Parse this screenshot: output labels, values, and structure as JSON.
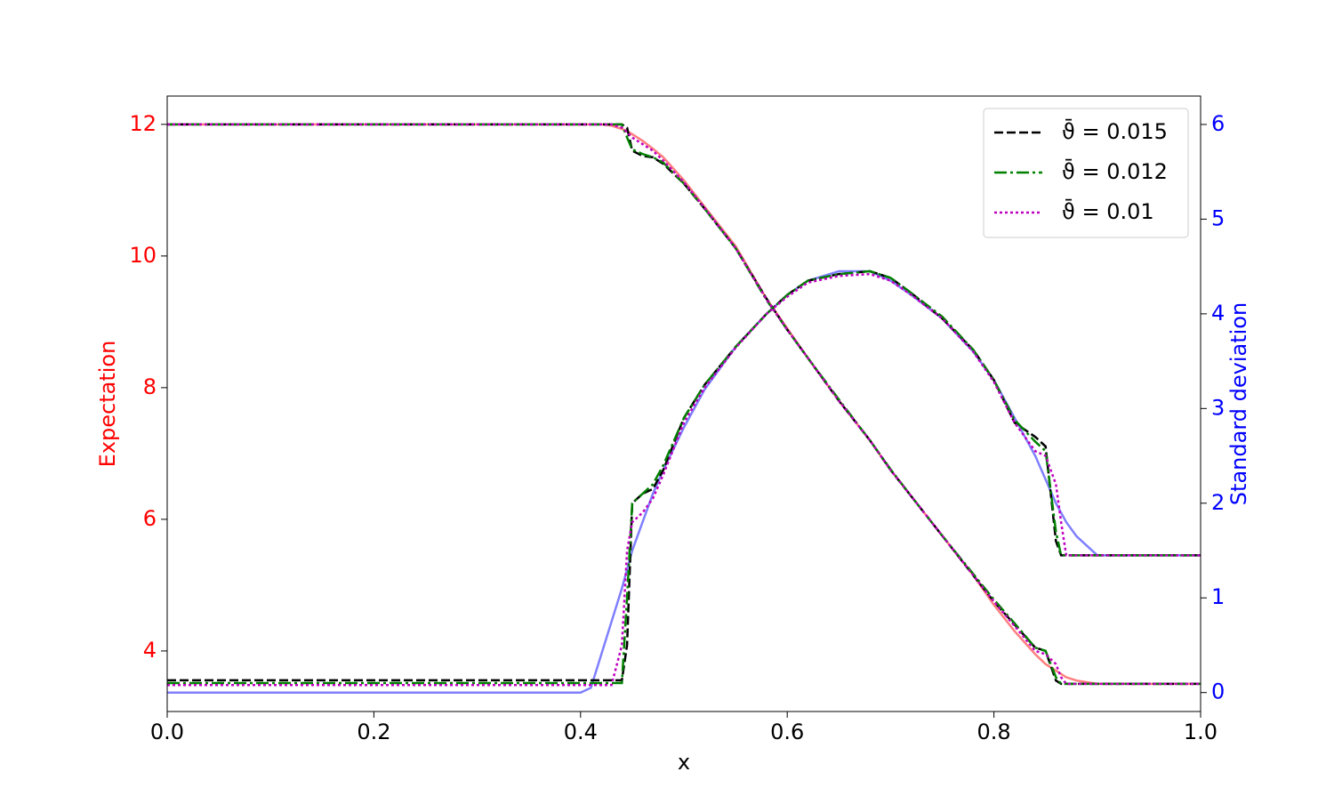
{
  "chart_data": {
    "type": "line",
    "xlabel": "x",
    "ylabel": "Expectation",
    "y2label": "Standard deviation",
    "ylabel_color": "#ff0000",
    "y2label_color": "#0000ff",
    "x": [
      0,
      0.1,
      0.2,
      0.3,
      0.4,
      0.41,
      0.42,
      0.43,
      0.44,
      0.445,
      0.45,
      0.46,
      0.47,
      0.48,
      0.5,
      0.52,
      0.55,
      0.58,
      0.6,
      0.62,
      0.65,
      0.68,
      0.7,
      0.72,
      0.75,
      0.78,
      0.8,
      0.82,
      0.84,
      0.85,
      0.86,
      0.865,
      0.87,
      0.88,
      0.9,
      0.95,
      1
    ],
    "xlim": [
      0,
      1
    ],
    "xticks": [
      {
        "value": 0,
        "label": "0.0"
      },
      0.2,
      0.4,
      0.6,
      0.8,
      {
        "value": 1,
        "label": "1.0"
      }
    ],
    "ylim": [
      3.08,
      12.43
    ],
    "yticks": [
      4,
      6,
      8,
      10,
      12
    ],
    "y2lim": [
      -0.2,
      6.3
    ],
    "y2ticks": [
      0,
      1,
      2,
      3,
      4,
      5,
      6
    ],
    "legend": "upper right",
    "series": [
      {
        "color": "#ff7f7f",
        "linestyle": "solid",
        "axis": "y",
        "values": [
          12,
          12,
          12,
          12,
          12,
          12,
          12,
          11.98,
          11.93,
          11.9,
          11.85,
          11.75,
          11.63,
          11.5,
          11.15,
          10.75,
          10.15,
          9.35,
          8.9,
          8.45,
          7.8,
          7.2,
          6.75,
          6.35,
          5.75,
          5.15,
          4.7,
          4.3,
          3.95,
          3.8,
          3.7,
          3.65,
          3.6,
          3.55,
          3.5,
          3.5,
          3.5
        ]
      },
      {
        "color": "#7f7fff",
        "linestyle": "solid",
        "axis": "y2",
        "values": [
          0,
          0,
          0,
          0,
          0,
          0.05,
          0.4,
          0.75,
          1.1,
          1.3,
          1.5,
          1.8,
          2.1,
          2.35,
          2.8,
          3.2,
          3.65,
          4.0,
          4.2,
          4.35,
          4.45,
          4.45,
          4.35,
          4.2,
          3.95,
          3.6,
          3.3,
          2.9,
          2.5,
          2.25,
          2.0,
          1.9,
          1.8,
          1.65,
          1.45,
          1.45,
          1.45
        ]
      },
      {
        "name": "ϑ̄ = 0.015",
        "color": "#000000",
        "linestyle": "dashed",
        "axis": "y",
        "values": [
          12,
          12,
          12,
          12,
          12,
          12,
          12,
          12,
          12,
          11.95,
          11.6,
          11.52,
          11.5,
          11.4,
          11.1,
          10.72,
          10.12,
          9.35,
          8.88,
          8.45,
          7.8,
          7.2,
          6.75,
          6.35,
          5.75,
          5.15,
          4.75,
          4.4,
          4.05,
          4.0,
          3.55,
          3.5,
          3.5,
          3.5,
          3.5,
          3.5,
          3.5
        ]
      },
      {
        "color": "#000000",
        "linestyle": "dashed",
        "axis": "y2",
        "values": [
          0.13,
          0.13,
          0.13,
          0.13,
          0.13,
          0.13,
          0.13,
          0.13,
          0.13,
          0.5,
          2.0,
          2.1,
          2.15,
          2.35,
          2.9,
          3.25,
          3.65,
          4.0,
          4.2,
          4.35,
          4.42,
          4.45,
          4.38,
          4.22,
          3.95,
          3.62,
          3.3,
          2.85,
          2.7,
          2.6,
          1.6,
          1.45,
          1.45,
          1.45,
          1.45,
          1.45,
          1.45
        ]
      },
      {
        "name": "ϑ̄ = 0.012",
        "color": "#008000",
        "linestyle": "dashdot",
        "axis": "y",
        "values": [
          12,
          12,
          12,
          12,
          12,
          12,
          12,
          12,
          12,
          11.8,
          11.62,
          11.55,
          11.5,
          11.42,
          11.1,
          10.72,
          10.12,
          9.33,
          8.88,
          8.45,
          7.82,
          7.2,
          6.76,
          6.35,
          5.75,
          5.17,
          4.78,
          4.42,
          4.05,
          4.0,
          3.6,
          3.5,
          3.5,
          3.5,
          3.5,
          3.5,
          3.5
        ]
      },
      {
        "color": "#008000",
        "linestyle": "dashdot",
        "axis": "y2",
        "values": [
          0.1,
          0.1,
          0.1,
          0.1,
          0.1,
          0.1,
          0.1,
          0.1,
          0.1,
          1.0,
          2.0,
          2.1,
          2.2,
          2.4,
          2.9,
          3.25,
          3.65,
          4.0,
          4.2,
          4.35,
          4.42,
          4.45,
          4.38,
          4.22,
          3.97,
          3.62,
          3.3,
          2.88,
          2.65,
          2.55,
          1.7,
          1.45,
          1.45,
          1.45,
          1.45,
          1.45,
          1.45
        ]
      },
      {
        "name": "ϑ̄ = 0.01",
        "color": "#bf00bf",
        "linestyle": "dotted",
        "axis": "y",
        "values": [
          12,
          12,
          12,
          12,
          12,
          12,
          12,
          12,
          11.95,
          11.88,
          11.8,
          11.7,
          11.6,
          11.45,
          11.12,
          10.73,
          10.12,
          9.34,
          8.88,
          8.45,
          7.8,
          7.2,
          6.75,
          6.35,
          5.75,
          5.15,
          4.75,
          4.38,
          4.0,
          3.95,
          3.8,
          3.6,
          3.5,
          3.5,
          3.5,
          3.5,
          3.5
        ]
      },
      {
        "color": "#bf00bf",
        "linestyle": "dotted",
        "axis": "y2",
        "values": [
          0.08,
          0.08,
          0.08,
          0.08,
          0.08,
          0.08,
          0.08,
          0.08,
          0.5,
          1.5,
          1.8,
          1.9,
          2.05,
          2.3,
          2.85,
          3.22,
          3.64,
          4.0,
          4.18,
          4.33,
          4.4,
          4.42,
          4.35,
          4.2,
          3.95,
          3.6,
          3.28,
          2.85,
          2.55,
          2.5,
          2.2,
          1.8,
          1.45,
          1.45,
          1.45,
          1.45,
          1.45
        ]
      }
    ]
  }
}
